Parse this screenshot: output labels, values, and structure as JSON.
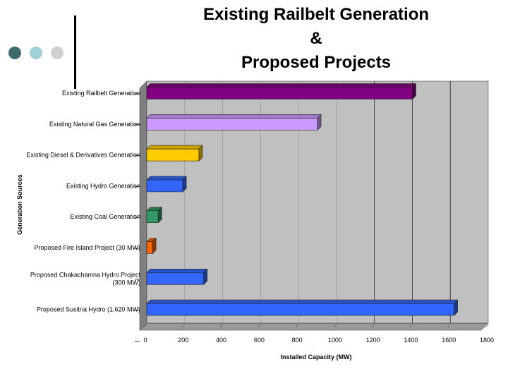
{
  "slide": {
    "title_lines": [
      "Existing Railbelt Generation",
      "&",
      "Proposed Projects"
    ],
    "decor_colors": [
      "#3d6b6b",
      "#9fd0d3",
      "#cfcfcf"
    ]
  },
  "chart_data": {
    "type": "bar",
    "orientation": "horizontal",
    "title": "Existing Railbelt Generation & Proposed Projects",
    "xlabel": "Installed Capacity (MW)",
    "ylabel": "Generation Sources",
    "xlim": [
      0,
      1800
    ],
    "xticks": [
      0,
      200,
      400,
      600,
      800,
      1000,
      1200,
      1400,
      1600,
      1800
    ],
    "grid": true,
    "categories": [
      [
        "Existing Railbelt Generation"
      ],
      [
        "Existing Natural Gas Generation"
      ],
      [
        "Existing Diesel & Derivatives Generation"
      ],
      [
        "Existing Hydro Generation"
      ],
      [
        "Existing Coal Generation"
      ],
      [
        "Proposed Fire Island Project (30 MW)"
      ],
      [
        "Proposed Chakachamna Hydro Project",
        "(300 MW)"
      ],
      [
        "Proposed Susitna Hydro (1,620 MW)"
      ]
    ],
    "values": [
      1400,
      900,
      275,
      190,
      60,
      30,
      300,
      1620
    ],
    "colors": [
      "#800080",
      "#cc99ff",
      "#ffcc00",
      "#3366ff",
      "#339966",
      "#ff6600",
      "#3366ff",
      "#3366ff"
    ]
  }
}
